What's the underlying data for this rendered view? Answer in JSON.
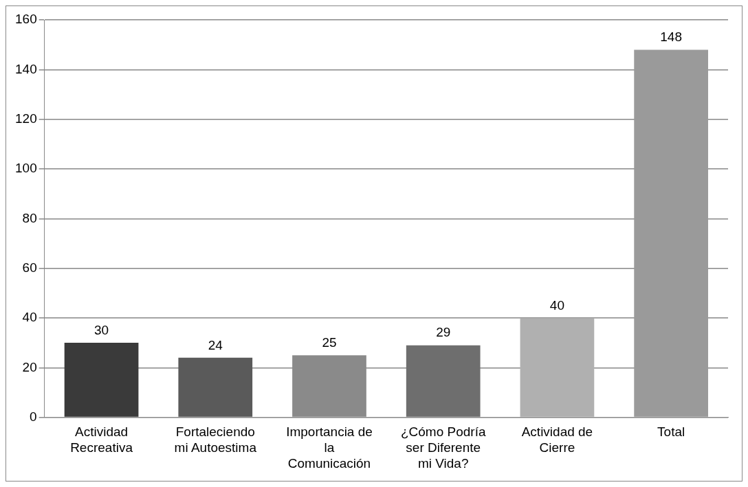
{
  "chart_data": {
    "type": "bar",
    "categories": [
      "Actividad Recreativa",
      "Fortaleciendo mi Autoestima",
      "Importancia de la Comunicación",
      "¿Cómo Podría ser Diferente mi Vida?",
      "Actividad de Cierre",
      "Total"
    ],
    "values": [
      30,
      24,
      25,
      29,
      40,
      148
    ],
    "colors": [
      "#3a3a3a",
      "#5a5a5a",
      "#8a8a8a",
      "#6e6e6e",
      "#b0b0b0",
      "#9a9a9a"
    ],
    "ylim": [
      0,
      160
    ],
    "yticks": [
      0,
      20,
      40,
      60,
      80,
      100,
      120,
      140,
      160
    ],
    "grid": "y",
    "data_labels": true,
    "legend": false
  }
}
